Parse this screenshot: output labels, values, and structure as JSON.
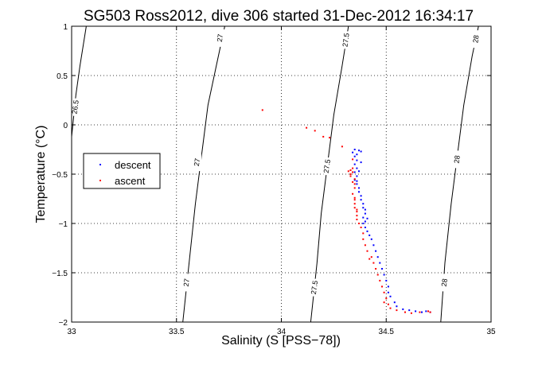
{
  "chart_data": {
    "type": "scatter",
    "title": "SG503 Ross2012, dive 306 started 31-Dec-2012 16:34:17",
    "xlabel": "Salinity (S [PSS−78])",
    "ylabel": "Temperature (°C)",
    "xlim": [
      33,
      35
    ],
    "ylim": [
      -2,
      1
    ],
    "x_ticks": [
      33,
      33.5,
      34,
      34.5,
      35
    ],
    "x_tick_labels": [
      "33",
      "33.5",
      "34",
      "34.5",
      "35"
    ],
    "y_ticks": [
      1,
      0.5,
      0,
      -0.5,
      -1,
      -1.5,
      -2
    ],
    "y_tick_labels": [
      "1",
      "0.5",
      "0",
      "−0.5",
      "−1",
      "−1.5",
      "−2"
    ],
    "grid": true,
    "legend_position": "left-middle",
    "series": [
      {
        "name": "descent",
        "color": "#0000ff",
        "points": [
          [
            34.35,
            -0.25
          ],
          [
            34.37,
            -0.26
          ],
          [
            34.34,
            -0.28
          ],
          [
            34.36,
            -0.3
          ],
          [
            34.38,
            -0.27
          ],
          [
            34.35,
            -0.32
          ],
          [
            34.36,
            -0.36
          ],
          [
            34.35,
            -0.4
          ],
          [
            34.36,
            -0.44
          ],
          [
            34.35,
            -0.48
          ],
          [
            34.36,
            -0.52
          ],
          [
            34.35,
            -0.56
          ],
          [
            34.36,
            -0.6
          ],
          [
            34.37,
            -0.64
          ],
          [
            34.37,
            -0.68
          ],
          [
            34.38,
            -0.72
          ],
          [
            34.38,
            -0.76
          ],
          [
            34.39,
            -0.8
          ],
          [
            34.39,
            -0.84
          ],
          [
            34.4,
            -0.86
          ],
          [
            34.4,
            -0.9
          ],
          [
            34.39,
            -0.94
          ],
          [
            34.4,
            -0.98
          ],
          [
            34.39,
            -1.0
          ],
          [
            34.4,
            -1.04
          ],
          [
            34.41,
            -1.08
          ],
          [
            34.42,
            -1.12
          ],
          [
            34.43,
            -1.16
          ],
          [
            34.44,
            -1.22
          ],
          [
            34.45,
            -1.28
          ],
          [
            34.46,
            -1.34
          ],
          [
            34.47,
            -1.4
          ],
          [
            34.48,
            -1.46
          ],
          [
            34.49,
            -1.52
          ],
          [
            34.5,
            -1.58
          ],
          [
            34.51,
            -1.64
          ],
          [
            34.51,
            -1.7
          ],
          [
            34.52,
            -1.74
          ],
          [
            34.54,
            -1.8
          ],
          [
            34.55,
            -1.84
          ],
          [
            34.58,
            -1.87
          ],
          [
            34.61,
            -1.88
          ],
          [
            34.64,
            -1.89
          ],
          [
            34.67,
            -1.9
          ],
          [
            34.69,
            -1.89
          ],
          [
            34.71,
            -1.9
          ],
          [
            34.41,
            -0.95
          ],
          [
            34.36,
            -0.57
          ],
          [
            34.37,
            -0.47
          ],
          [
            34.38,
            -0.38
          ]
        ]
      },
      {
        "name": "ascent",
        "color": "#ff0000",
        "points": [
          [
            33.91,
            0.15
          ],
          [
            34.12,
            -0.03
          ],
          [
            34.16,
            -0.06
          ],
          [
            34.2,
            -0.12
          ],
          [
            34.23,
            -0.13
          ],
          [
            34.29,
            -0.22
          ],
          [
            34.34,
            -0.35
          ],
          [
            34.33,
            -0.46
          ],
          [
            34.34,
            -0.48
          ],
          [
            34.33,
            -0.52
          ],
          [
            34.35,
            -0.55
          ],
          [
            34.34,
            -0.58
          ],
          [
            34.33,
            -0.5
          ],
          [
            34.35,
            -0.6
          ],
          [
            34.35,
            -0.64
          ],
          [
            34.34,
            -0.7
          ],
          [
            34.35,
            -0.76
          ],
          [
            34.35,
            -0.8
          ],
          [
            34.35,
            -0.84
          ],
          [
            34.36,
            -0.88
          ],
          [
            34.36,
            -0.92
          ],
          [
            34.36,
            -0.96
          ],
          [
            34.37,
            -1.0
          ],
          [
            34.38,
            -1.04
          ],
          [
            34.39,
            -1.1
          ],
          [
            34.39,
            -1.16
          ],
          [
            34.4,
            -1.22
          ],
          [
            34.41,
            -1.28
          ],
          [
            34.43,
            -1.34
          ],
          [
            34.44,
            -1.4
          ],
          [
            34.45,
            -1.46
          ],
          [
            34.46,
            -1.52
          ],
          [
            34.47,
            -1.58
          ],
          [
            34.48,
            -1.64
          ],
          [
            34.49,
            -1.7
          ],
          [
            34.5,
            -1.76
          ],
          [
            34.51,
            -1.82
          ],
          [
            34.52,
            -1.86
          ],
          [
            34.55,
            -1.88
          ],
          [
            34.59,
            -1.9
          ],
          [
            34.62,
            -1.91
          ],
          [
            34.66,
            -1.9
          ],
          [
            34.7,
            -1.89
          ],
          [
            34.71,
            -1.9
          ],
          [
            34.49,
            -1.8
          ],
          [
            34.34,
            -0.44
          ],
          [
            34.32,
            -0.47
          ],
          [
            34.35,
            -0.74
          ],
          [
            34.36,
            -0.86
          ],
          [
            34.42,
            -1.36
          ]
        ]
      }
    ],
    "density_contours": [
      {
        "label": "26.5",
        "color": "#000000",
        "points": [
          [
            33.0,
            -0.12
          ],
          [
            33.02,
            0.3
          ],
          [
            33.04,
            0.6
          ],
          [
            33.07,
            1.0
          ]
        ],
        "label_positions": [
          [
            33.02,
            0.18
          ]
        ]
      },
      {
        "label": "27",
        "color": "#000000",
        "points": [
          [
            33.53,
            -2.0
          ],
          [
            33.56,
            -1.4
          ],
          [
            33.59,
            -0.8
          ],
          [
            33.62,
            -0.3
          ],
          [
            33.65,
            0.2
          ],
          [
            33.69,
            0.6
          ],
          [
            33.73,
            1.0
          ]
        ],
        "label_positions": [
          [
            33.55,
            -1.6
          ],
          [
            33.6,
            -0.38
          ],
          [
            33.71,
            0.88
          ]
        ]
      },
      {
        "label": "27.5",
        "color": "#000000",
        "points": [
          [
            34.14,
            -2.0
          ],
          [
            34.17,
            -1.4
          ],
          [
            34.19,
            -0.9
          ],
          [
            34.22,
            -0.4
          ],
          [
            34.25,
            0.1
          ],
          [
            34.29,
            0.6
          ],
          [
            34.32,
            1.0
          ]
        ],
        "label_positions": [
          [
            34.16,
            -1.65
          ],
          [
            34.22,
            -0.42
          ],
          [
            34.31,
            0.86
          ]
        ]
      },
      {
        "label": "28",
        "color": "#000000",
        "points": [
          [
            34.76,
            -2.0
          ],
          [
            34.78,
            -1.4
          ],
          [
            34.81,
            -0.8
          ],
          [
            34.84,
            -0.3
          ],
          [
            34.87,
            0.2
          ],
          [
            34.91,
            0.7
          ],
          [
            34.94,
            1.0
          ]
        ],
        "label_positions": [
          [
            34.78,
            -1.6
          ],
          [
            34.84,
            -0.35
          ],
          [
            34.93,
            0.87
          ]
        ]
      }
    ]
  }
}
